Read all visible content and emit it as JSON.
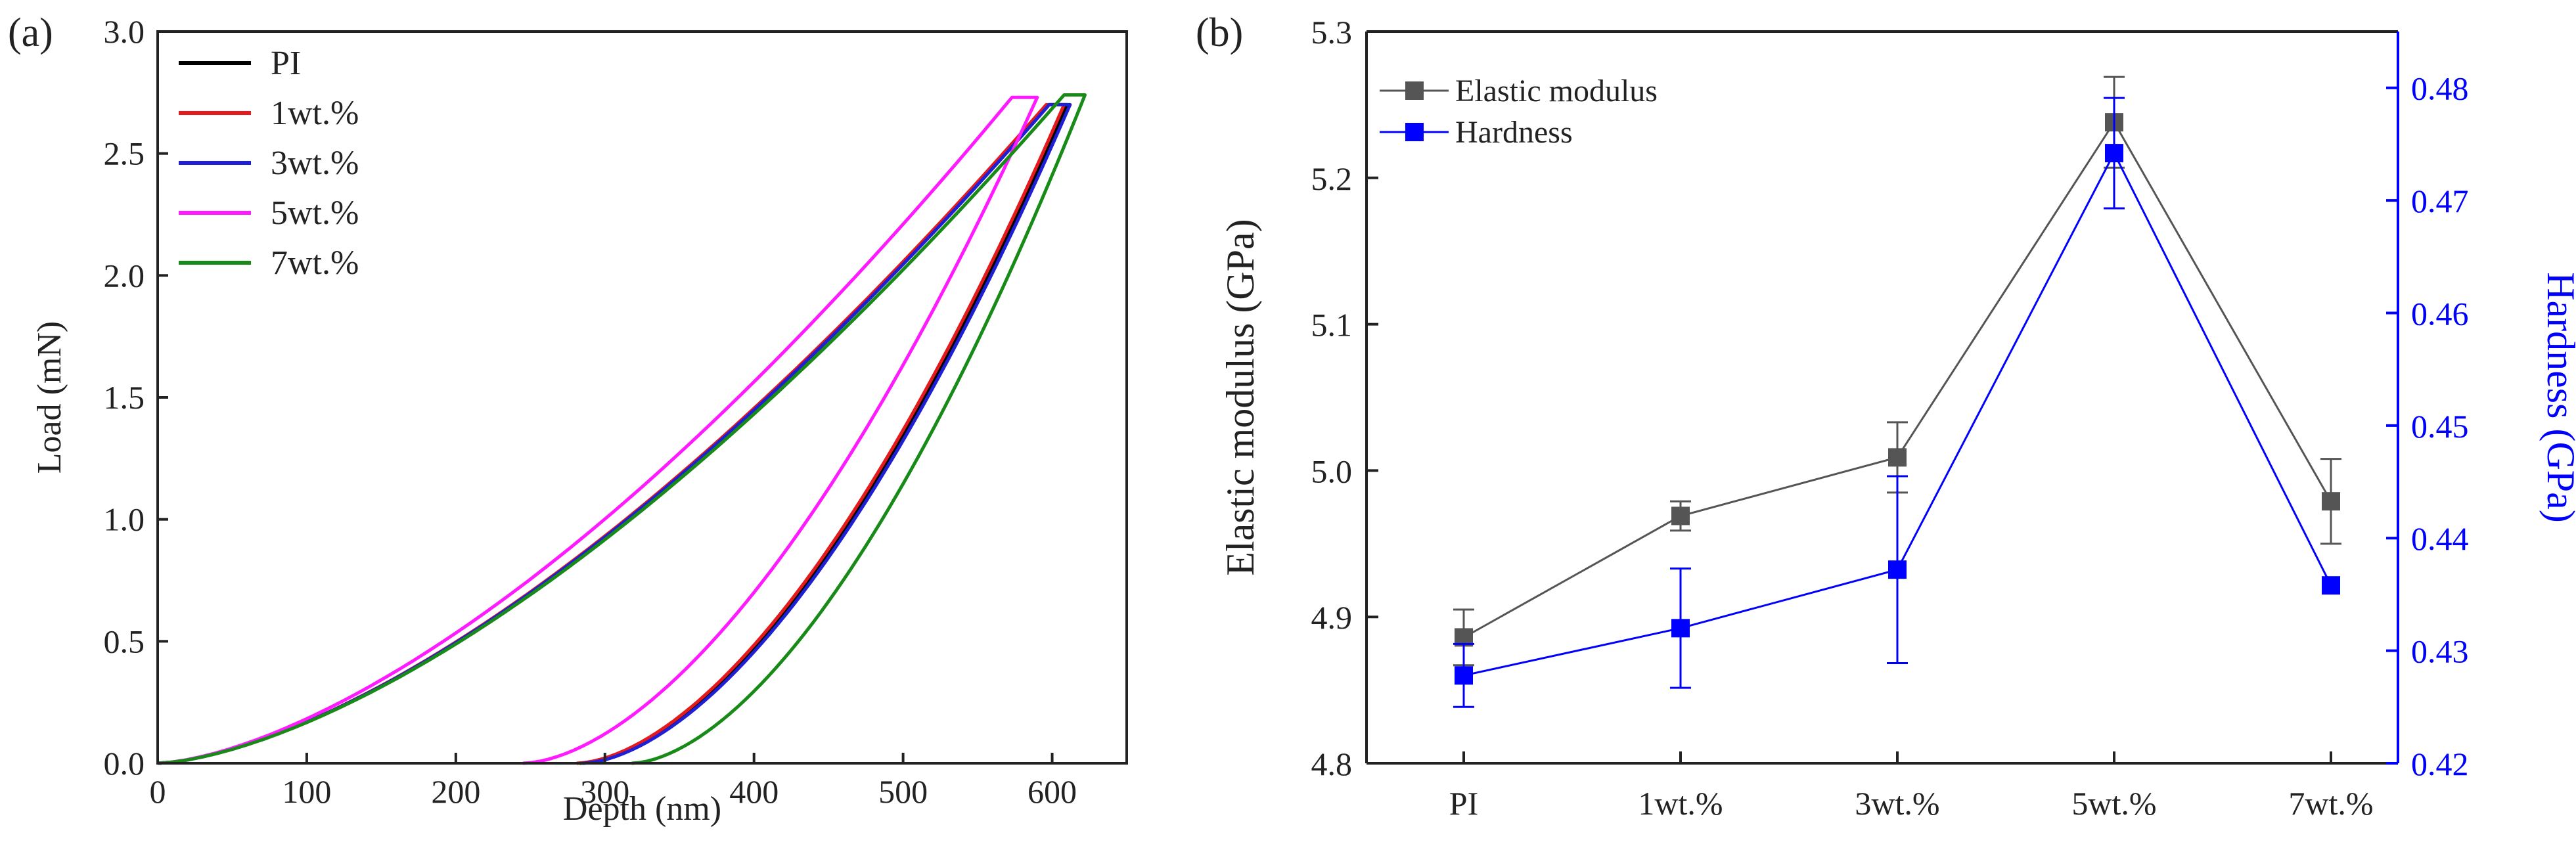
{
  "chart_data": [
    {
      "panel": "(a)",
      "type": "line",
      "title": "",
      "xlabel": "Depth (nm)",
      "ylabel": "Load (mN)",
      "xlim": [
        0,
        650
      ],
      "ylim": [
        0,
        3.0
      ],
      "xticks": [
        0,
        100,
        200,
        300,
        400,
        500,
        600
      ],
      "yticks": [
        "0.0",
        "0.5",
        "1.0",
        "1.5",
        "2.0",
        "2.5",
        "3.0"
      ],
      "legend_position": "top-left",
      "series": [
        {
          "name": "PI",
          "color": "#000000",
          "max_depth": 610,
          "peak_load": 2.7,
          "hold_start_depth": 598,
          "residual_depth": 283
        },
        {
          "name": "1wt.%",
          "color": "#e41a1c",
          "max_depth": 608,
          "peak_load": 2.7,
          "hold_start_depth": 596,
          "residual_depth": 281
        },
        {
          "name": "3wt.%",
          "color": "#1f1fd6",
          "max_depth": 612,
          "peak_load": 2.7,
          "hold_start_depth": 598,
          "residual_depth": 285
        },
        {
          "name": "5wt.%",
          "color": "#ff1aff",
          "max_depth": 590,
          "peak_load": 2.73,
          "hold_start_depth": 573,
          "residual_depth": 245
        },
        {
          "name": "7wt.%",
          "color": "#178a17",
          "max_depth": 622,
          "peak_load": 2.74,
          "hold_start_depth": 608,
          "residual_depth": 318
        }
      ]
    },
    {
      "panel": "(b)",
      "type": "line",
      "title": "",
      "xlabel": "",
      "ylabel": "Elastic modulus (GPa)",
      "y2label": "Hardness (GPa)",
      "categories": [
        "PI",
        "1wt.%",
        "3wt.%",
        "5wt.%",
        "7wt.%"
      ],
      "ylim": [
        4.8,
        5.3
      ],
      "y2lim": [
        0.42,
        0.485
      ],
      "yticks": [
        "4.8",
        "4.9",
        "5.0",
        "5.1",
        "5.2",
        "5.3"
      ],
      "y2ticks": [
        "0.42",
        "0.43",
        "0.44",
        "0.45",
        "0.46",
        "0.47",
        "0.48"
      ],
      "legend_position": "top-left",
      "series": [
        {
          "name": "Elastic modulus",
          "axis": "left",
          "color": "#555555",
          "values": [
            4.886,
            4.969,
            5.009,
            5.238,
            4.979
          ],
          "errors": [
            0.019,
            0.01,
            0.024,
            0.031,
            0.029
          ]
        },
        {
          "name": "Hardness",
          "axis": "right",
          "color": "#0000ff",
          "values": [
            0.4278,
            0.432,
            0.4372,
            0.4742,
            0.4358
          ],
          "errors": [
            0.0028,
            0.0053,
            0.0083,
            0.0049,
            0.0
          ]
        }
      ]
    }
  ]
}
